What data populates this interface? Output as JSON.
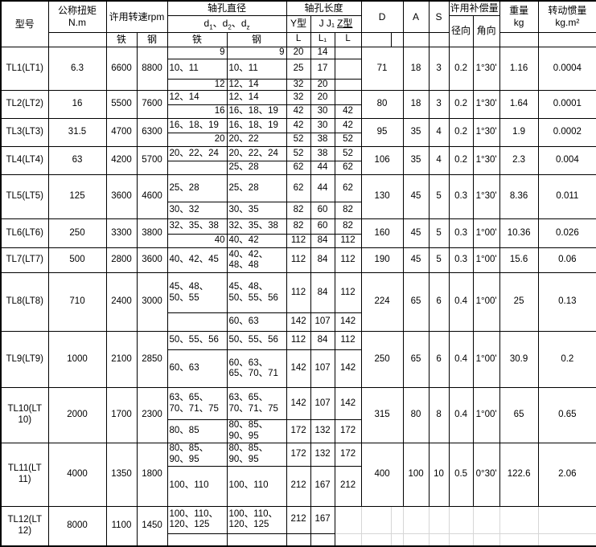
{
  "table": {
    "header": {
      "model": "型号",
      "torque1": "公称扭矩",
      "torque2": "N.m",
      "speed": "许用转速rpm",
      "bore_dia": "轴孔直径",
      "dia_parts": [
        "d",
        "1",
        "、d",
        "2",
        "、d",
        "z"
      ],
      "bore_len": "轴孔长度",
      "y_type": "Y型",
      "jj1": "J J₁",
      "z_type": "Z型",
      "iron": "铁",
      "steel": "钢",
      "L": "L",
      "L1": "L₁",
      "D": "D",
      "A": "A",
      "S": "S",
      "comp": "许用补偿量",
      "radial": "径向",
      "angular": "角向",
      "weight1": "重量",
      "weight2": "kg",
      "inertia1": "转动惯量",
      "inertia2": "kg.m²"
    },
    "models": [
      {
        "lines": [
          "TL1(LT1)"
        ],
        "torque": "6.3",
        "iron_rpm": "6600",
        "steel_rpm": "8800",
        "rows": [
          [
            "9",
            "9",
            "20",
            "14",
            ""
          ],
          [
            "10、11",
            "10、11",
            "25",
            "17",
            ""
          ],
          [
            "12",
            "12、14",
            "32",
            "20",
            ""
          ]
        ],
        "D": "71",
        "A": "18",
        "S": "3",
        "radial": "0.2",
        "angular": "1°30'",
        "weight": "1.16",
        "inertia": "0.0004"
      },
      {
        "lines": [
          "TL2(LT2)"
        ],
        "torque": "16",
        "iron_rpm": "5500",
        "steel_rpm": "7600",
        "rows": [
          [
            "12、14",
            "12、14",
            "32",
            "20",
            ""
          ],
          [
            "16",
            "16、18、19",
            "42",
            "30",
            "42"
          ]
        ],
        "D": "80",
        "A": "18",
        "S": "3",
        "radial": "0.2",
        "angular": "1°30'",
        "weight": "1.64",
        "inertia": "0.0001"
      },
      {
        "lines": [
          "TL3(LT3)"
        ],
        "torque": "31.5",
        "iron_rpm": "4700",
        "steel_rpm": "6300",
        "rows": [
          [
            "16、18、19",
            "16、18、19",
            "42",
            "30",
            "42"
          ],
          [
            "20",
            "20、22",
            "52",
            "38",
            "52"
          ]
        ],
        "D": "95",
        "A": "35",
        "S": "4",
        "radial": "0.2",
        "angular": "1°30'",
        "weight": "1.9",
        "inertia": "0.0002"
      },
      {
        "lines": [
          "TL4(LT4)"
        ],
        "torque": "63",
        "iron_rpm": "4200",
        "steel_rpm": "5700",
        "rows": [
          [
            "20、22、24",
            "20、22、24",
            "52",
            "38",
            "52"
          ],
          [
            "",
            "25、28",
            "62",
            "44",
            "62"
          ]
        ],
        "D": "106",
        "A": "35",
        "S": "4",
        "radial": "0.2",
        "angular": "1°30'",
        "weight": "2.3",
        "inertia": "0.004"
      },
      {
        "lines": [
          "TL5(LT5)"
        ],
        "torque": "125",
        "iron_rpm": "3600",
        "steel_rpm": "4600",
        "rows": [
          [
            "25、28",
            "25、28",
            "62",
            "44",
            "62"
          ],
          [
            "30、32",
            "30、35",
            "82",
            "60",
            "82"
          ]
        ],
        "D": "130",
        "A": "45",
        "S": "5",
        "radial": "0.3",
        "angular": "1°30'",
        "weight": "8.36",
        "inertia": "0.011"
      },
      {
        "lines": [
          "TL6(LT6)"
        ],
        "torque": "250",
        "iron_rpm": "3300",
        "steel_rpm": "3800",
        "rows": [
          [
            "32、35、38",
            "32、35、38",
            "82",
            "60",
            "82"
          ],
          [
            "40",
            "40、42",
            "112",
            "84",
            "112"
          ]
        ],
        "D": "160",
        "A": "45",
        "S": "5",
        "radial": "0.3",
        "angular": "1°00'",
        "weight": "10.36",
        "inertia": "0.026"
      },
      {
        "lines": [
          "TL7(LT7)"
        ],
        "torque": "500",
        "iron_rpm": "2800",
        "steel_rpm": "3600",
        "rows": [
          [
            "40、42、45",
            "40、42、48、48",
            "112",
            "84",
            "112"
          ]
        ],
        "D": "190",
        "A": "45",
        "S": "5",
        "radial": "0.3",
        "angular": "1°00'",
        "weight": "15.6",
        "inertia": "0.06"
      },
      {
        "lines": [
          "TL8(LT8)"
        ],
        "torque": "710",
        "iron_rpm": "2400",
        "steel_rpm": "3000",
        "rows": [
          [
            "45、48、50、55",
            "45、48、50、55、56",
            "112",
            "84",
            "112"
          ],
          [
            "",
            "60、63",
            "142",
            "107",
            "142"
          ]
        ],
        "D": "224",
        "A": "65",
        "S": "6",
        "radial": "0.4",
        "angular": "1°00'",
        "weight": "25",
        "inertia": "0.13"
      },
      {
        "lines": [
          "TL9(LT9)"
        ],
        "torque": "1000",
        "iron_rpm": "2100",
        "steel_rpm": "2850",
        "rows": [
          [
            "50、55、56",
            "50、55、56",
            "112",
            "84",
            "112"
          ],
          [
            "60、63",
            "60、63、65、70、71",
            "142",
            "107",
            "142"
          ]
        ],
        "D": "250",
        "A": "65",
        "S": "6",
        "radial": "0.4",
        "angular": "1°00'",
        "weight": "30.9",
        "inertia": "0.2"
      },
      {
        "lines": [
          "TL10(LT",
          "10)"
        ],
        "torque": "2000",
        "iron_rpm": "1700",
        "steel_rpm": "2300",
        "rows": [
          [
            "63、65、70、71、75",
            "63、65、70、71、75",
            "142",
            "107",
            "142"
          ],
          [
            "80、85",
            "80、85、90、95",
            "172",
            "132",
            "172"
          ]
        ],
        "D": "315",
        "A": "80",
        "S": "8",
        "radial": "0.4",
        "angular": "1°00'",
        "weight": "65",
        "inertia": "0.65"
      },
      {
        "lines": [
          "TL11(LT",
          "11)"
        ],
        "torque": "4000",
        "iron_rpm": "1350",
        "steel_rpm": "1800",
        "rows": [
          [
            "80、85、90、95",
            "80、85、90、95",
            "172",
            "132",
            "172"
          ],
          [
            "100、110",
            "100、110",
            "212",
            "167",
            "212"
          ]
        ],
        "D": "400",
        "A": "100",
        "S": "10",
        "radial": "0.5",
        "angular": "0°30'",
        "weight": "122.6",
        "inertia": "2.06"
      },
      {
        "lines": [
          "TL12(LT",
          "12)"
        ],
        "torque": "8000",
        "iron_rpm": "1100",
        "steel_rpm": "1450",
        "rows": [
          [
            "100、110、120、125",
            "100、110、120、125",
            "212",
            "167"
          ],
          [
            "",
            "",
            "",
            ""
          ]
        ]
      }
    ]
  }
}
